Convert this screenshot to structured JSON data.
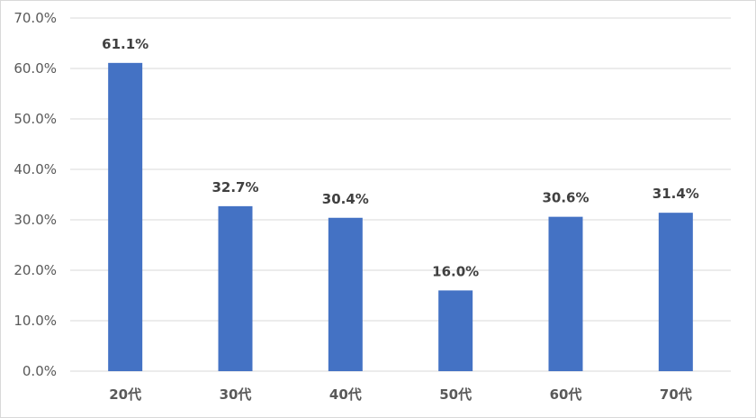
{
  "chart_data": {
    "type": "bar",
    "title": "",
    "xlabel": "",
    "ylabel": "",
    "categories": [
      "20代",
      "30代",
      "40代",
      "50代",
      "60代",
      "70代"
    ],
    "values": [
      61.1,
      32.7,
      30.4,
      16.0,
      30.6,
      31.4
    ],
    "data_labels": [
      "61.1%",
      "32.7%",
      "30.4%",
      "16.0%",
      "30.6%",
      "31.4%"
    ],
    "ylim": [
      0,
      70
    ],
    "y_ticks": [
      0,
      10,
      20,
      30,
      40,
      50,
      60,
      70
    ],
    "y_tick_labels": [
      "0.0%",
      "10.0%",
      "20.0%",
      "30.0%",
      "40.0%",
      "50.0%",
      "60.0%",
      "70.0%"
    ],
    "grid": true,
    "legend": "none",
    "bar_color": "#4472c4",
    "gridline_color": "#d9d9d9"
  }
}
